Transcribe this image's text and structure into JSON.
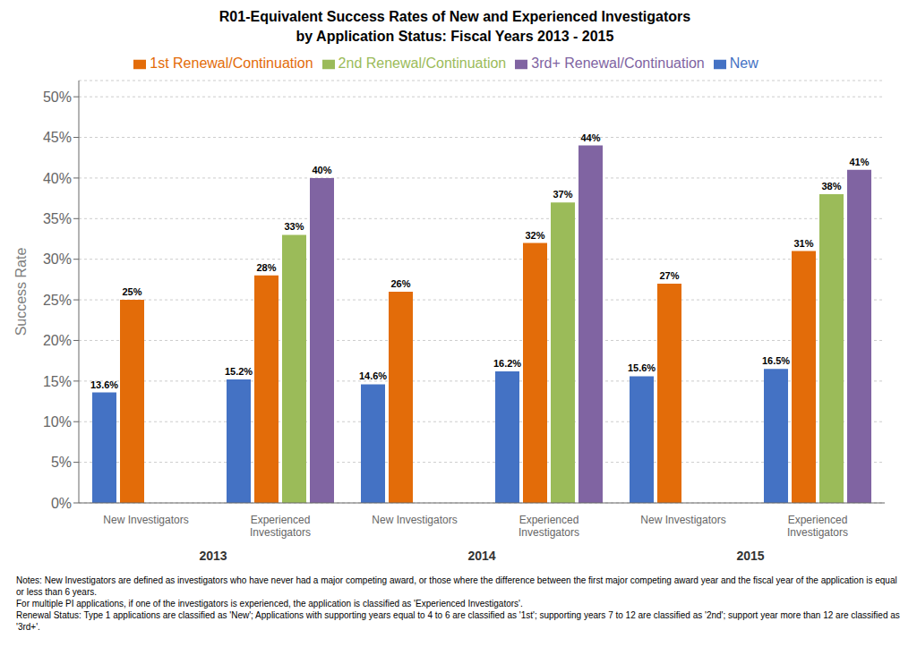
{
  "chart_data": {
    "type": "bar",
    "title": "R01-Equivalent Success Rates of New and Experienced Investigators",
    "subtitle": "by Application Status:  Fiscal Years 2013 - 2015",
    "ylabel": "Success Rate",
    "categories": [
      "New Investigators",
      "Experienced\nInvestigators",
      "New Investigators",
      "Experienced\nInvestigators",
      "New Investigators",
      "Experienced\nInvestigators"
    ],
    "annotations": [
      "2013",
      "2014",
      "2015"
    ],
    "notes": [
      "Notes: New Investigators are defined as investigators who have never had a major competing award, or those where the difference between the first major competing award year and the fiscal year of the application is equal or less than 6 years.",
      "For multiple PI applications, if one of the investigators is experienced, the application is classified as 'Experienced Investigators'.",
      "Renewal Status:  Type 1 applications are classified as 'New'; Applications with supporting years equal to 4 to 6 are classified as '1st'; supporting years 7 to 12 are classified as '2nd'; support year more than 12 are classified as '3rd+'."
    ],
    "series": [
      {
        "name": "New",
        "color": "#4472C4",
        "values": [
          13.6,
          15.2,
          14.6,
          16.2,
          15.6,
          16.5
        ],
        "value_labels": [
          "13.6%",
          "15.2%",
          "14.6%",
          "16.2%",
          "15.6%",
          "16.5%"
        ]
      },
      {
        "name": "1st Renewal/Continuation",
        "color": "#E36C09",
        "values": [
          25.0,
          28.0,
          26.0,
          32.0,
          27.0,
          31.0
        ],
        "value_labels": [
          "25%",
          "28%",
          "26%",
          "32%",
          "27%",
          "31%"
        ]
      },
      {
        "name": "2nd Renewal/Continuation",
        "color": "#9BBB59",
        "values": [
          null,
          33.0,
          null,
          37.0,
          null,
          38.0
        ],
        "value_labels": [
          null,
          "33%",
          null,
          "37%",
          null,
          "38%"
        ]
      },
      {
        "name": "3rd+ Renewal/Continuation",
        "color": "#8064A2",
        "values": [
          null,
          40.0,
          null,
          44.0,
          null,
          41.0
        ],
        "value_labels": [
          null,
          "40%",
          null,
          "44%",
          null,
          "41%"
        ]
      }
    ],
    "ylim": [
      0,
      52
    ],
    "yticks": [
      {
        "value": 0,
        "label": "0%"
      },
      {
        "value": 5,
        "label": "5%"
      },
      {
        "value": 10,
        "label": "10%"
      },
      {
        "value": 15,
        "label": "15%"
      },
      {
        "value": 20,
        "label": "20%"
      },
      {
        "value": 25,
        "label": "25%"
      },
      {
        "value": 30,
        "label": "30%"
      },
      {
        "value": 35,
        "label": "35%"
      },
      {
        "value": 40,
        "label": "40%"
      },
      {
        "value": 45,
        "label": "45%"
      },
      {
        "value": 50,
        "label": "50%"
      }
    ],
    "grid": true,
    "legend": "top",
    "data_labels": true
  }
}
